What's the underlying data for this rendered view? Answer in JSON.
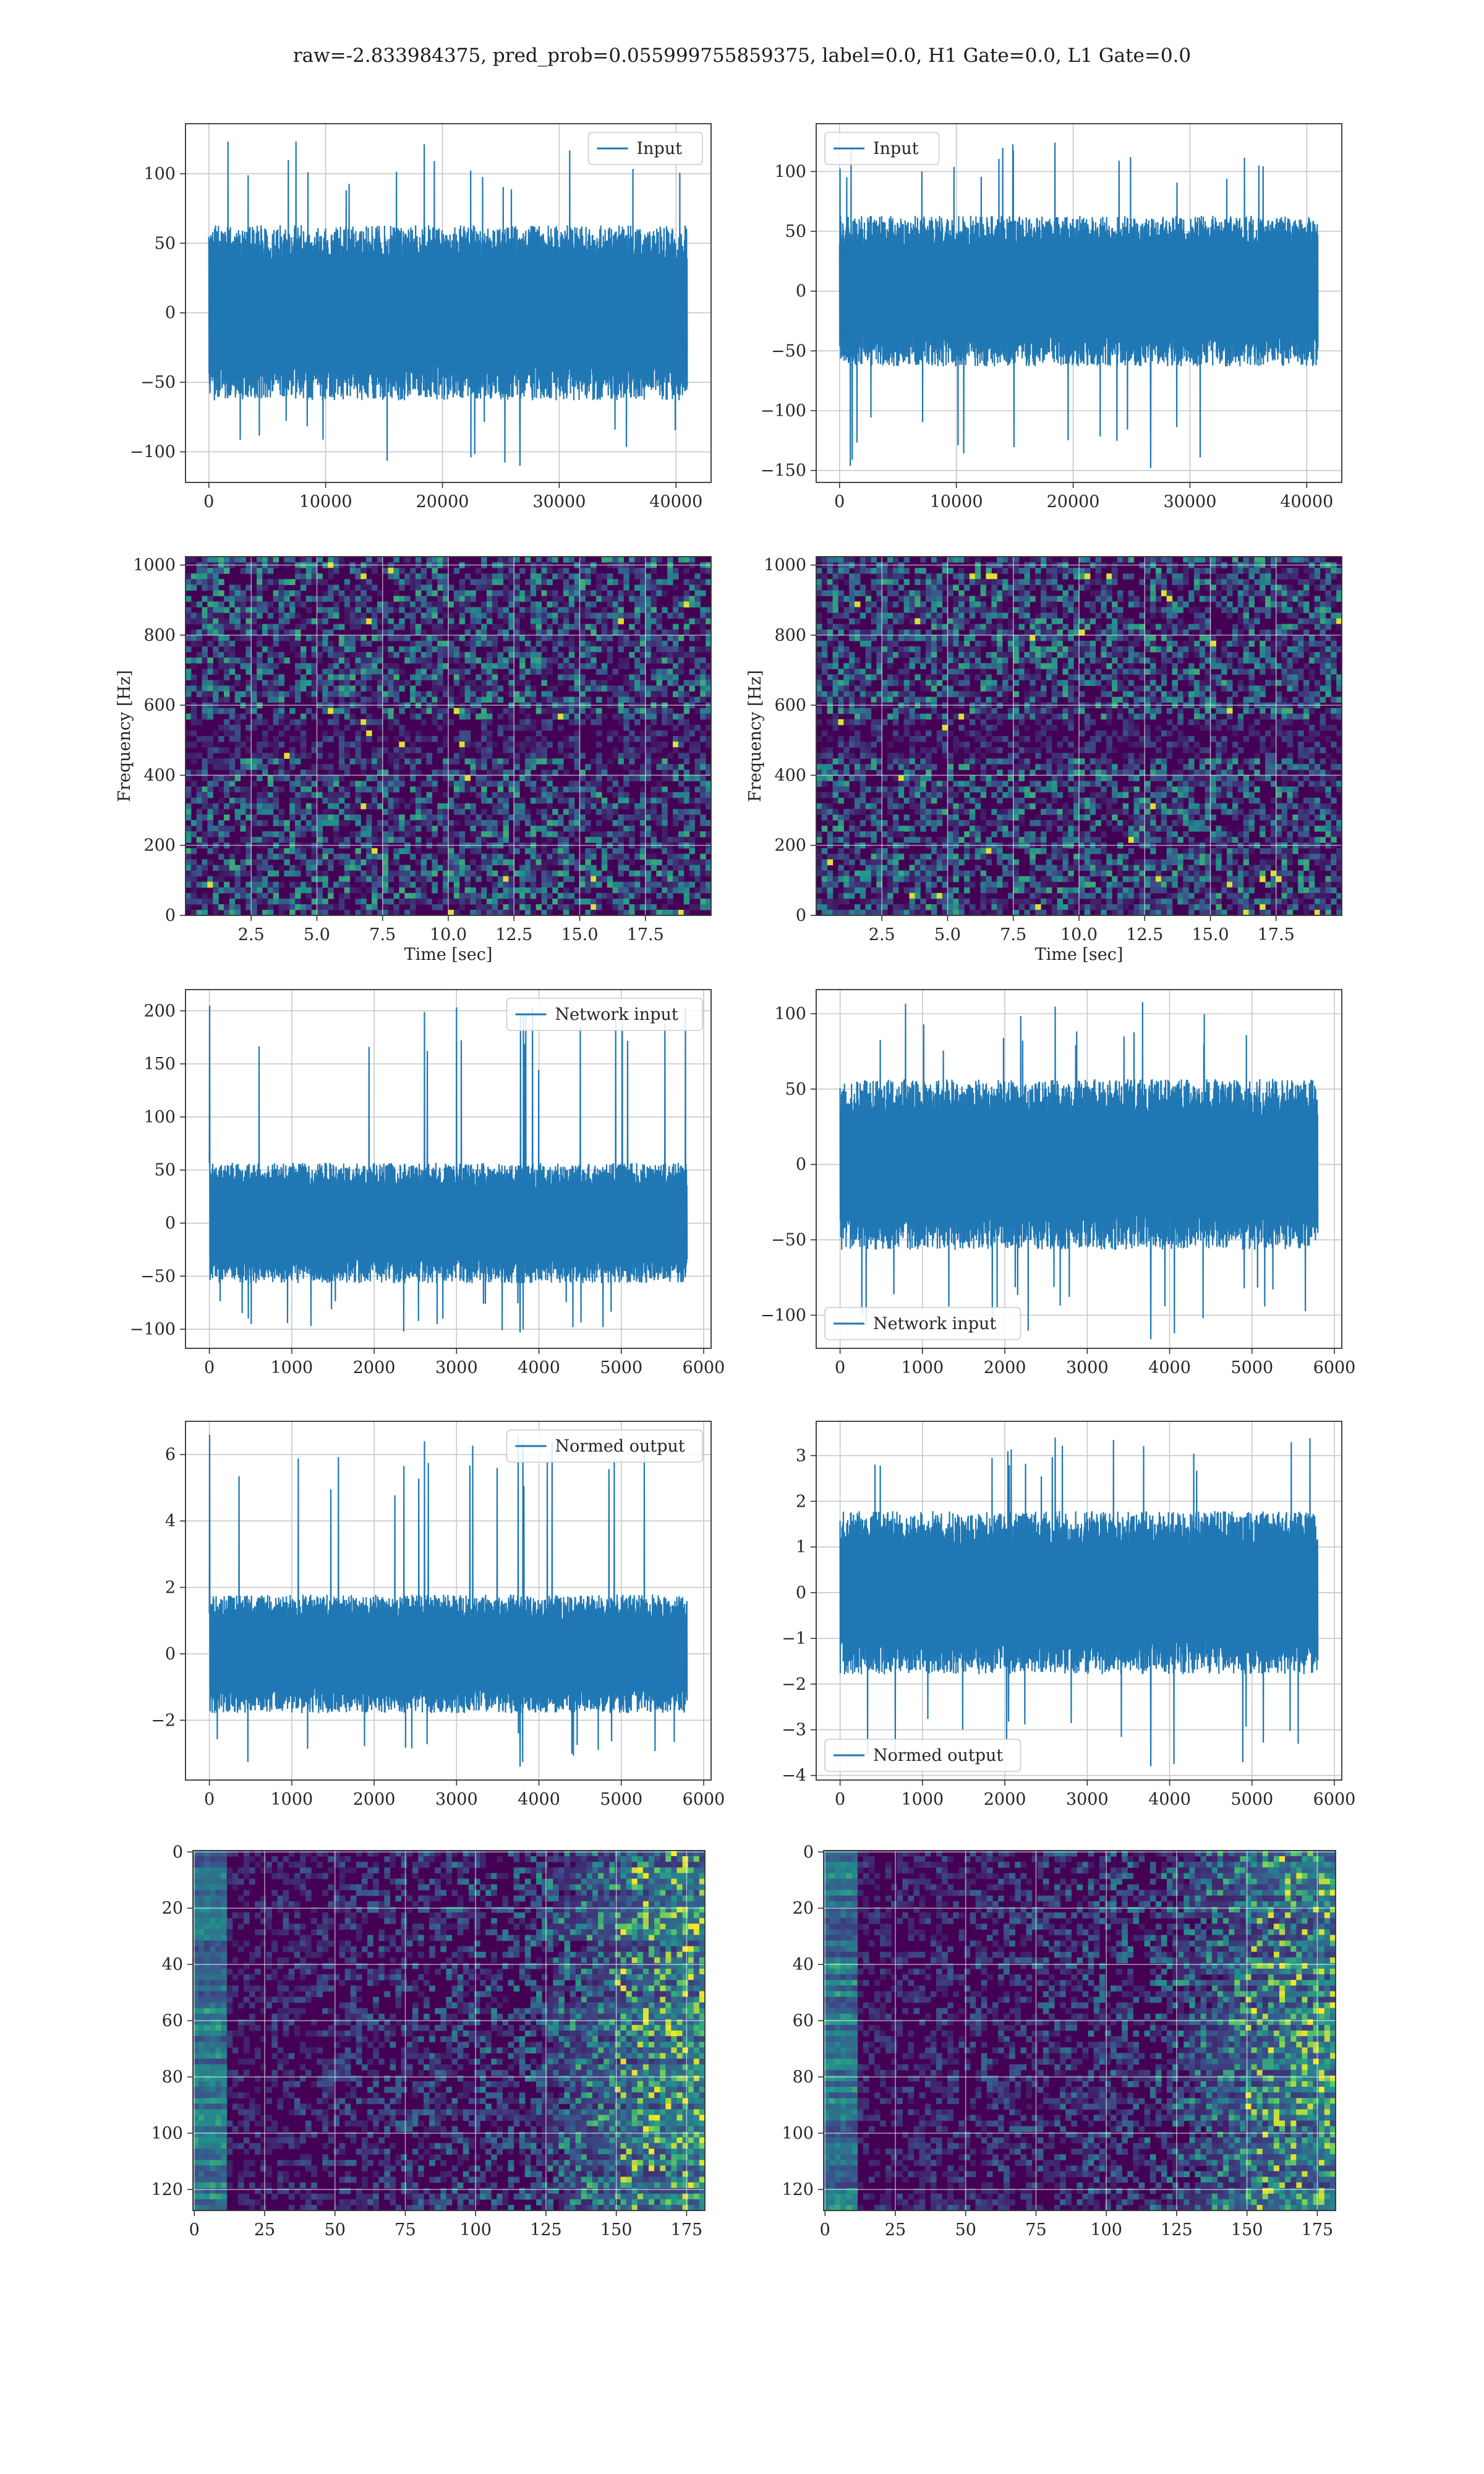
{
  "figure": {
    "title": "raw=-2.833984375, pred_prob=0.055999755859375, label=0.0, H1 Gate=0.0, L1 Gate=0.0"
  },
  "colors": {
    "line": "#1f77b4",
    "grid": "#c8c8c8",
    "viridis_dark": "#440154",
    "viridis_mid": "#21918c",
    "viridis_bright": "#fde725"
  },
  "chart_data": [
    {
      "id": "r1-left",
      "type": "line",
      "series": [
        {
          "name": "Input",
          "n": 40960,
          "amplitude": 30,
          "peak_min": -110,
          "peak_max": 125
        }
      ],
      "legend": "top-right",
      "xlim": [
        -2000,
        43000
      ],
      "ylim": [
        -122,
        136
      ],
      "xticks": [
        0,
        10000,
        20000,
        30000,
        40000
      ],
      "xtick_labels": [
        "0",
        "10000",
        "20000",
        "30000",
        "40000"
      ],
      "yticks": [
        -100,
        -50,
        0,
        50,
        100
      ],
      "ytick_labels": [
        "−100",
        "−50",
        "0",
        "50",
        "100"
      ],
      "xlabel": "",
      "ylabel": "",
      "grid": true
    },
    {
      "id": "r1-right",
      "type": "line",
      "series": [
        {
          "name": "Input",
          "n": 40960,
          "amplitude": 30,
          "peak_min": -148,
          "peak_max": 128
        }
      ],
      "legend": "top-left",
      "xlim": [
        -2000,
        43000
      ],
      "ylim": [
        -160,
        140
      ],
      "xticks": [
        0,
        10000,
        20000,
        30000,
        40000
      ],
      "xtick_labels": [
        "0",
        "10000",
        "20000",
        "30000",
        "40000"
      ],
      "yticks": [
        -150,
        -100,
        -50,
        0,
        50,
        100
      ],
      "ytick_labels": [
        "−150",
        "−100",
        "−50",
        "0",
        "50",
        "100"
      ],
      "xlabel": "",
      "ylabel": "",
      "grid": true
    },
    {
      "id": "r2-left",
      "type": "heatmap",
      "xlim": [
        0,
        20
      ],
      "ylim": [
        0,
        1024
      ],
      "xticks": [
        2.5,
        5,
        7.5,
        10,
        12.5,
        15,
        17.5
      ],
      "xtick_labels": [
        "2.5",
        "5.0",
        "7.5",
        "10.0",
        "12.5",
        "15.0",
        "17.5"
      ],
      "yticks": [
        0,
        200,
        400,
        600,
        800,
        1000
      ],
      "ytick_labels": [
        "0",
        "200",
        "400",
        "600",
        "800",
        "1000"
      ],
      "xlabel": "Time [sec]",
      "ylabel": "Frequency [Hz]",
      "grid": true
    },
    {
      "id": "r2-right",
      "type": "heatmap",
      "xlim": [
        0,
        20
      ],
      "ylim": [
        0,
        1024
      ],
      "xticks": [
        2.5,
        5,
        7.5,
        10,
        12.5,
        15,
        17.5
      ],
      "xtick_labels": [
        "2.5",
        "5.0",
        "7.5",
        "10.0",
        "12.5",
        "15.0",
        "17.5"
      ],
      "yticks": [
        0,
        200,
        400,
        600,
        800,
        1000
      ],
      "ytick_labels": [
        "0",
        "200",
        "400",
        "600",
        "800",
        "1000"
      ],
      "xlabel": "Time [sec]",
      "ylabel": "Frequency [Hz]",
      "grid": true
    },
    {
      "id": "r3-left",
      "type": "line",
      "series": [
        {
          "name": "Network input",
          "n": 5800,
          "amplitude": 27,
          "peak_min": -103,
          "peak_max": 205
        }
      ],
      "legend": "top-right",
      "xlim": [
        -290,
        6090
      ],
      "ylim": [
        -118,
        220
      ],
      "xticks": [
        0,
        1000,
        2000,
        3000,
        4000,
        5000,
        6000
      ],
      "xtick_labels": [
        "0",
        "1000",
        "2000",
        "3000",
        "4000",
        "5000",
        "6000"
      ],
      "yticks": [
        -100,
        -50,
        0,
        50,
        100,
        150,
        200
      ],
      "ytick_labels": [
        "−100",
        "−50",
        "0",
        "50",
        "100",
        "150",
        "200"
      ],
      "xlabel": "",
      "ylabel": "",
      "grid": true
    },
    {
      "id": "r3-right",
      "type": "line",
      "series": [
        {
          "name": "Network input",
          "n": 5800,
          "amplitude": 27,
          "peak_min": -116,
          "peak_max": 108
        }
      ],
      "legend": "bottom-left",
      "xlim": [
        -290,
        6090
      ],
      "ylim": [
        -122,
        116
      ],
      "xticks": [
        0,
        1000,
        2000,
        3000,
        4000,
        5000,
        6000
      ],
      "xtick_labels": [
        "0",
        "1000",
        "2000",
        "3000",
        "4000",
        "5000",
        "6000"
      ],
      "yticks": [
        -100,
        -50,
        0,
        50,
        100
      ],
      "ytick_labels": [
        "−100",
        "−50",
        "0",
        "50",
        "100"
      ],
      "xlabel": "",
      "ylabel": "",
      "grid": true
    },
    {
      "id": "r4-left",
      "type": "line",
      "series": [
        {
          "name": "Normed output",
          "n": 5800,
          "amplitude": 0.85,
          "peak_min": -3.4,
          "peak_max": 6.6
        }
      ],
      "legend": "top-right",
      "xlim": [
        -290,
        6090
      ],
      "ylim": [
        -3.8,
        7.0
      ],
      "xticks": [
        0,
        1000,
        2000,
        3000,
        4000,
        5000,
        6000
      ],
      "xtick_labels": [
        "0",
        "1000",
        "2000",
        "3000",
        "4000",
        "5000",
        "6000"
      ],
      "yticks": [
        -2,
        0,
        2,
        4,
        6
      ],
      "ytick_labels": [
        "−2",
        "0",
        "2",
        "4",
        "6"
      ],
      "xlabel": "",
      "ylabel": "",
      "grid": true
    },
    {
      "id": "r4-right",
      "type": "line",
      "series": [
        {
          "name": "Normed output",
          "n": 5800,
          "amplitude": 0.85,
          "peak_min": -3.8,
          "peak_max": 3.5
        }
      ],
      "legend": "bottom-left",
      "xlim": [
        -290,
        6090
      ],
      "ylim": [
        -4.1,
        3.75
      ],
      "xticks": [
        0,
        1000,
        2000,
        3000,
        4000,
        5000,
        6000
      ],
      "xtick_labels": [
        "0",
        "1000",
        "2000",
        "3000",
        "4000",
        "5000",
        "6000"
      ],
      "yticks": [
        -4,
        -3,
        -2,
        -1,
        0,
        1,
        2,
        3
      ],
      "ytick_labels": [
        "−4",
        "−3",
        "−2",
        "−1",
        "0",
        "1",
        "2",
        "3"
      ],
      "xlabel": "",
      "ylabel": "",
      "grid": true
    },
    {
      "id": "r5-left",
      "type": "heatmap",
      "xlim": [
        -0.5,
        181.5
      ],
      "ylim": [
        127.5,
        -0.5
      ],
      "xticks": [
        0,
        25,
        50,
        75,
        100,
        125,
        150,
        175
      ],
      "xtick_labels": [
        "0",
        "25",
        "50",
        "75",
        "100",
        "125",
        "150",
        "175"
      ],
      "yticks": [
        0,
        20,
        40,
        60,
        80,
        100,
        120
      ],
      "ytick_labels": [
        "0",
        "20",
        "40",
        "60",
        "80",
        "100",
        "120"
      ],
      "xlabel": "",
      "ylabel": "",
      "grid": true
    },
    {
      "id": "r5-right",
      "type": "heatmap",
      "xlim": [
        -0.5,
        181.5
      ],
      "ylim": [
        127.5,
        -0.5
      ],
      "xticks": [
        0,
        25,
        50,
        75,
        100,
        125,
        150,
        175
      ],
      "xtick_labels": [
        "0",
        "25",
        "50",
        "75",
        "100",
        "125",
        "150",
        "175"
      ],
      "yticks": [
        0,
        20,
        40,
        60,
        80,
        100,
        120
      ],
      "ytick_labels": [
        "0",
        "20",
        "40",
        "60",
        "80",
        "100",
        "120"
      ],
      "xlabel": "",
      "ylabel": "",
      "grid": true
    }
  ]
}
